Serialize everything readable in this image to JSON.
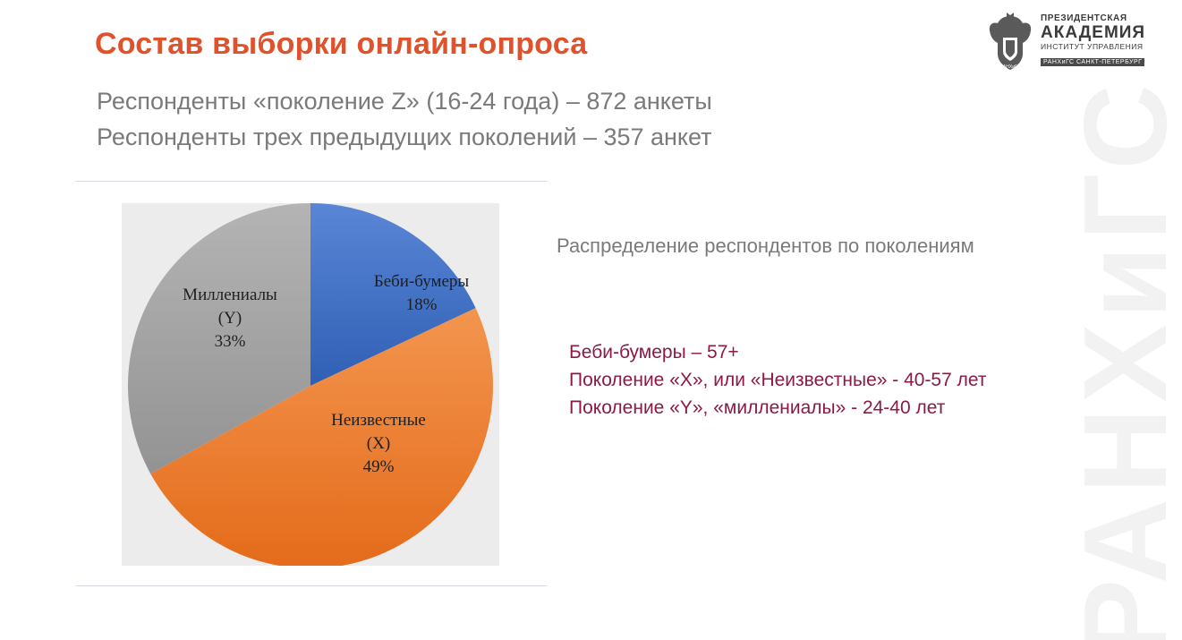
{
  "slide": {
    "title": "Состав выборки онлайн-опроса",
    "subtitle_lines": [
      "Респонденты «поколение Z» (16-24 года) – 872 анкеты",
      "Респонденты трех предыдущих поколений – 357 анкет"
    ],
    "chart_caption": "Распределение респондентов по поколениям",
    "definitions": [
      "Беби-бумеры – 57+",
      "Поколение «X», или «Неизвестные» - 40-57 лет",
      "Поколение «Y», «миллениалы» - 24-40 лет"
    ]
  },
  "logo": {
    "line1": "ПРЕЗИДЕНТСКАЯ",
    "line2": "АКАДЕМИЯ",
    "line3": "ИНСТИТУТ УПРАВЛЕНИЯ",
    "line4": "РАНХиГС САНКТ-ПЕТЕРБУРГ",
    "emblem_text": "РАНХиГС"
  },
  "watermark": {
    "text": "РАНХиГС"
  },
  "colors": {
    "title": "#e0522c",
    "subtitle": "#7a7a7a",
    "definitions": "#8b1a45",
    "slice_baby_boomers": "#4472c4",
    "slice_unknown": "#ed7d31",
    "slice_millennials": "#a5a5a5"
  },
  "chart_data": {
    "type": "pie",
    "title": "",
    "slices": [
      {
        "label_lines": [
          "Беби-бумеры",
          "18%"
        ],
        "value": 18,
        "color": "#4472c4"
      },
      {
        "label_lines": [
          "Неизвестные",
          "(X)",
          "49%"
        ],
        "value": 49,
        "color": "#ed7d31"
      },
      {
        "label_lines": [
          "Миллениалы",
          "(Y)",
          "33%"
        ],
        "value": 33,
        "color": "#a5a5a5"
      }
    ],
    "start_angle": "12 o'clock",
    "direction": "clockwise",
    "background": "#ececec"
  }
}
